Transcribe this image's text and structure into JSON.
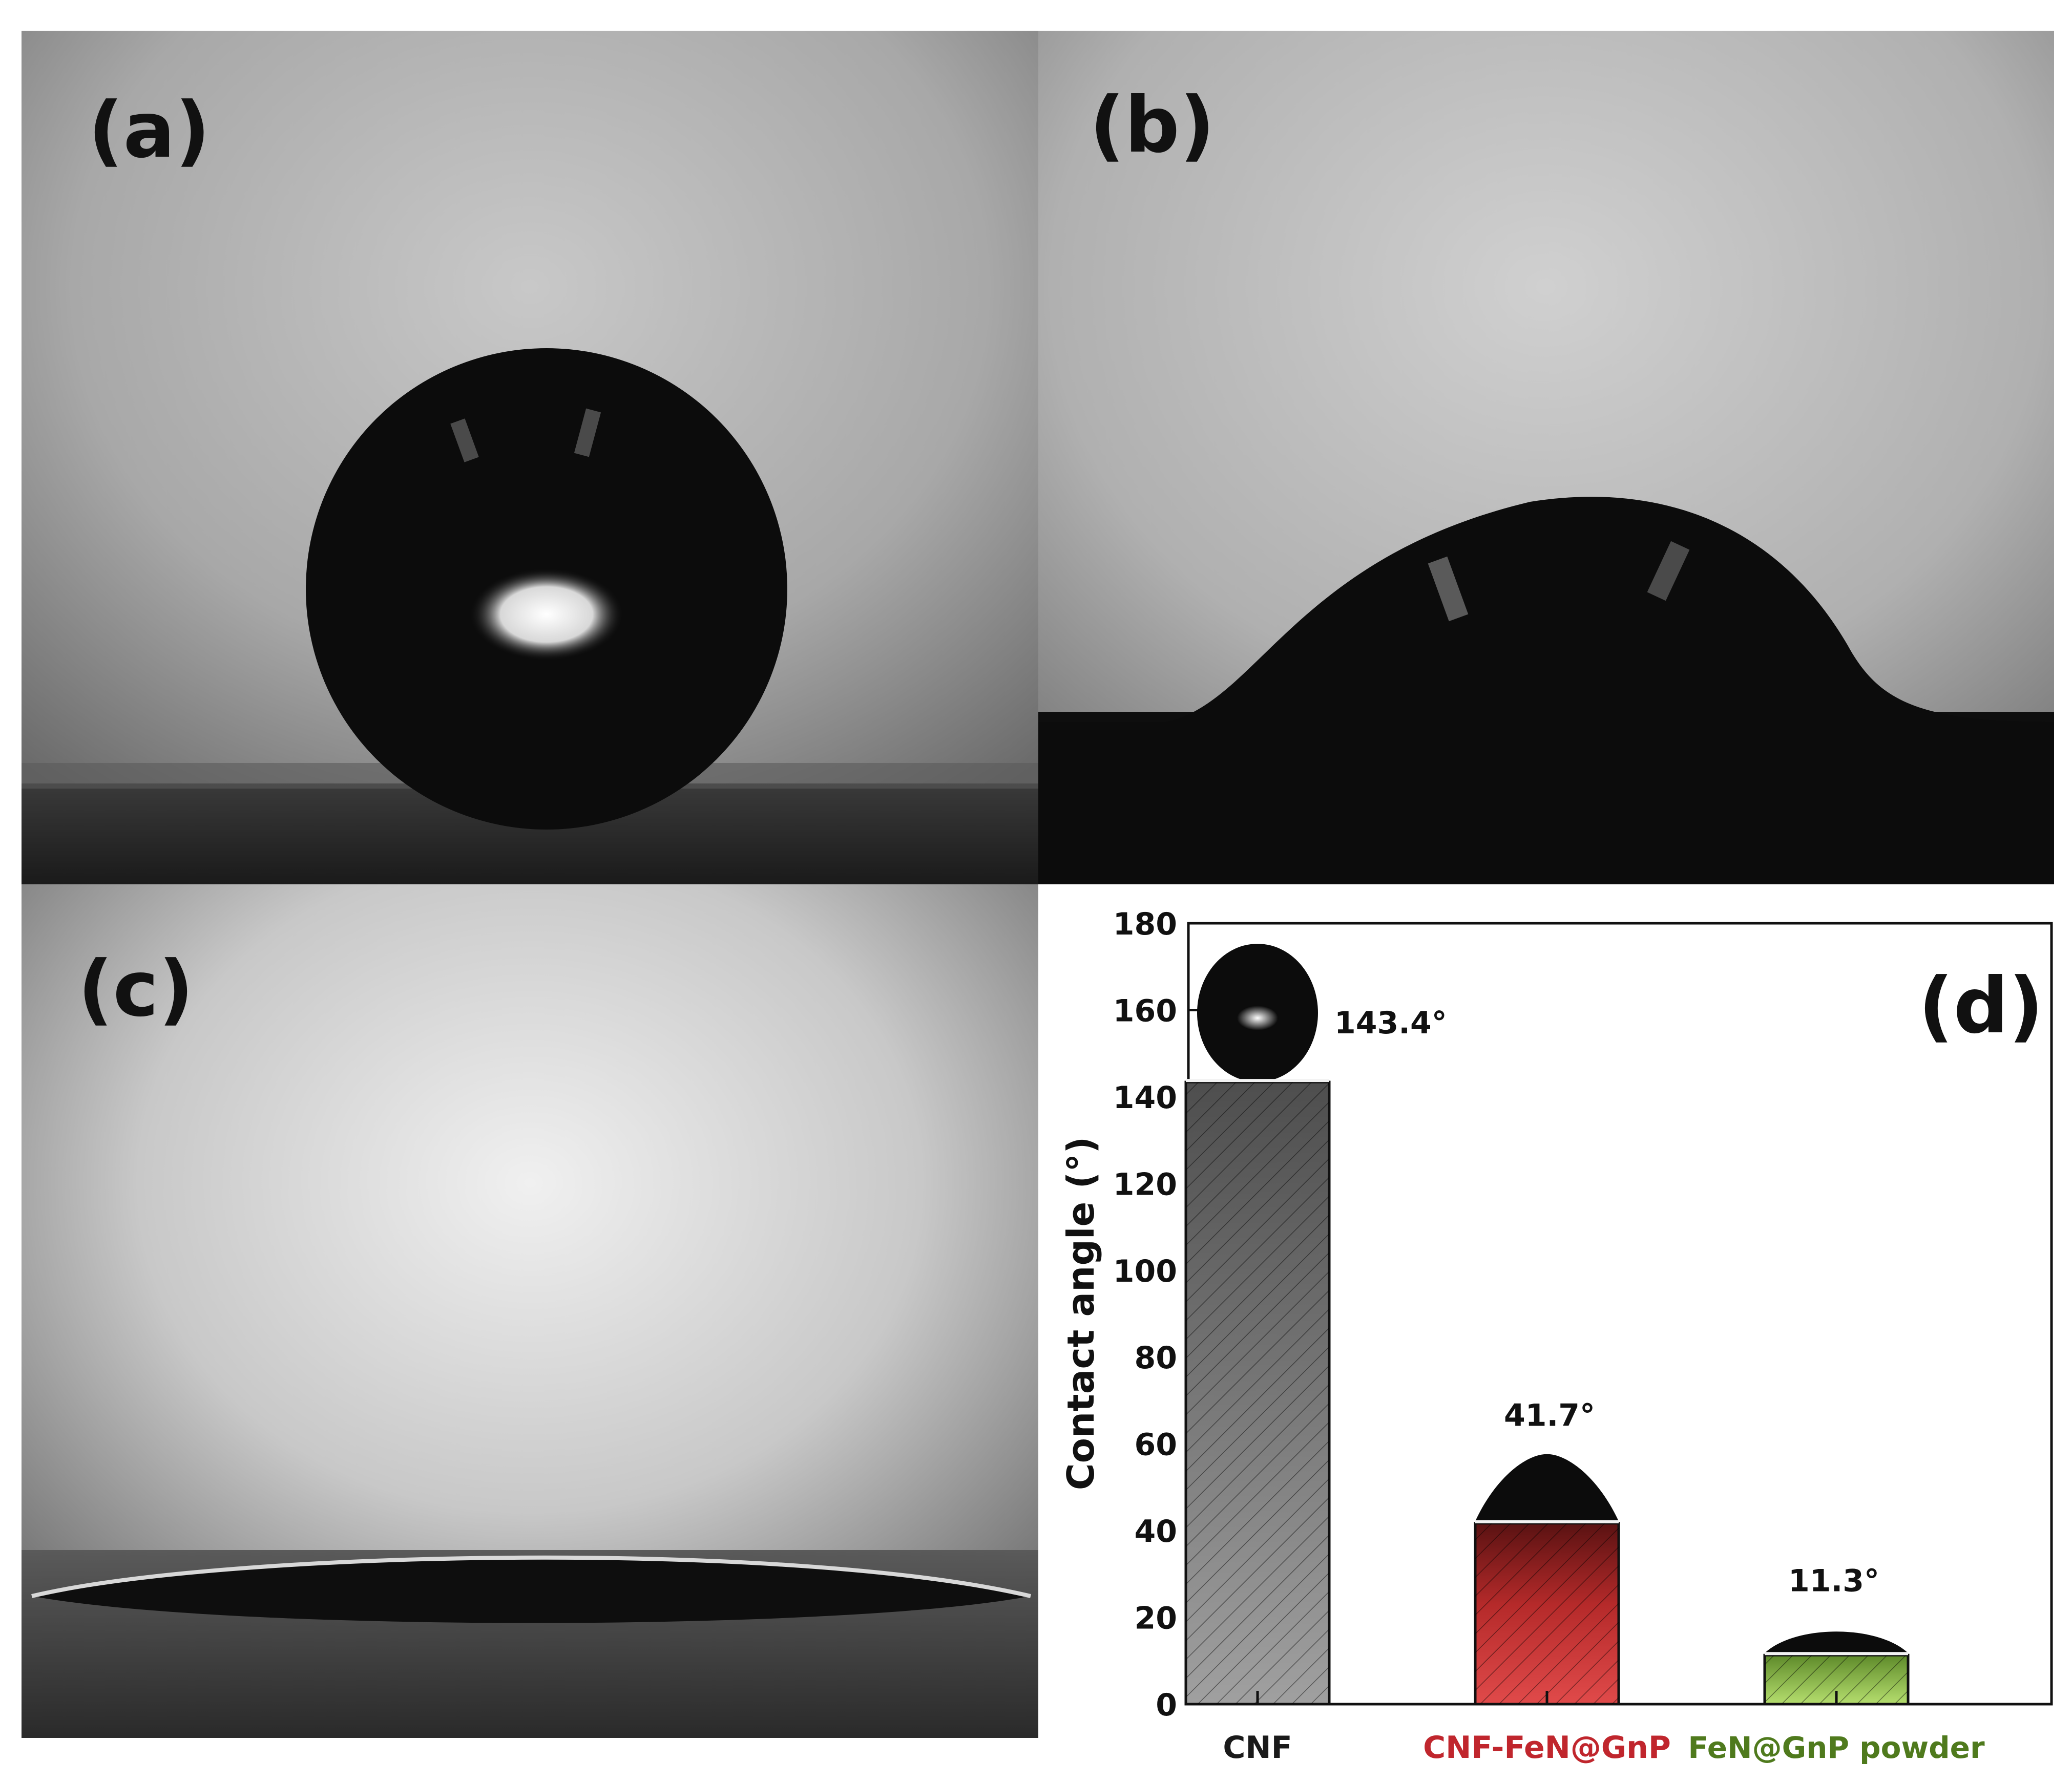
{
  "panels": {
    "a": {
      "label": "(a)"
    },
    "b": {
      "label": "(b)"
    },
    "c": {
      "label": "(c)"
    },
    "d": {
      "label": "(d)"
    }
  },
  "colors": {
    "cnf": "#7a7a7a",
    "cnf_fen_gnp": "#c43a3a",
    "fen_gnp_powder": "#8fbf45",
    "cnf_label": "#1a1a1a",
    "cnf_fen_gnp_label": "#c0262d",
    "fen_gnp_powder_label": "#4f7a1d"
  },
  "chart_data": {
    "type": "bar",
    "title": "",
    "xlabel": "",
    "ylabel": "Contact angle (°)",
    "ylim": [
      0,
      180
    ],
    "yticks": [
      0,
      20,
      40,
      60,
      80,
      100,
      120,
      140,
      160,
      180
    ],
    "categories": [
      "CNF",
      "CNF-FeN@GnP",
      "FeN@GnP powder"
    ],
    "values": [
      143.4,
      41.7,
      11.3
    ],
    "data_labels": [
      "143.4°",
      "41.7°",
      "11.3°"
    ],
    "fill_pattern": "diagonal-hatch",
    "grid": false
  }
}
